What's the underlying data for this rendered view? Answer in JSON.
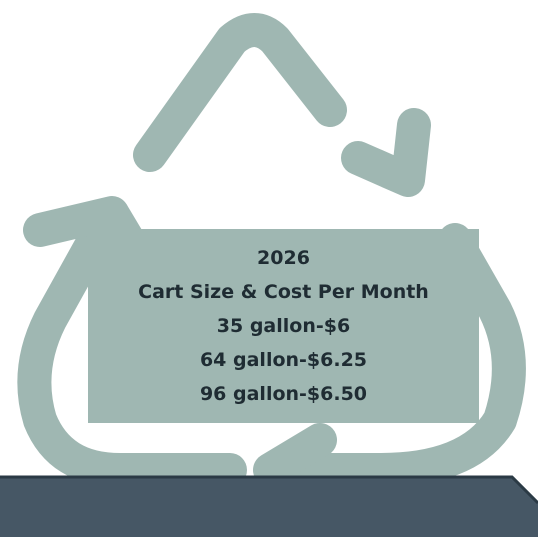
{
  "colors": {
    "arrow": "#9FB7B2",
    "panel": "#9FB7B2",
    "text": "#1f2c33",
    "banner_fill": "#465765",
    "banner_edge": "#2b3a45"
  },
  "icons": {
    "graphic": "recycle-arrows-icon"
  },
  "info": {
    "year": "2026",
    "heading": "Cart Size & Cost Per Month",
    "lines": [
      "35 gallon-$6",
      "64 gallon-$6.25",
      "96 gallon-$6.50"
    ]
  }
}
